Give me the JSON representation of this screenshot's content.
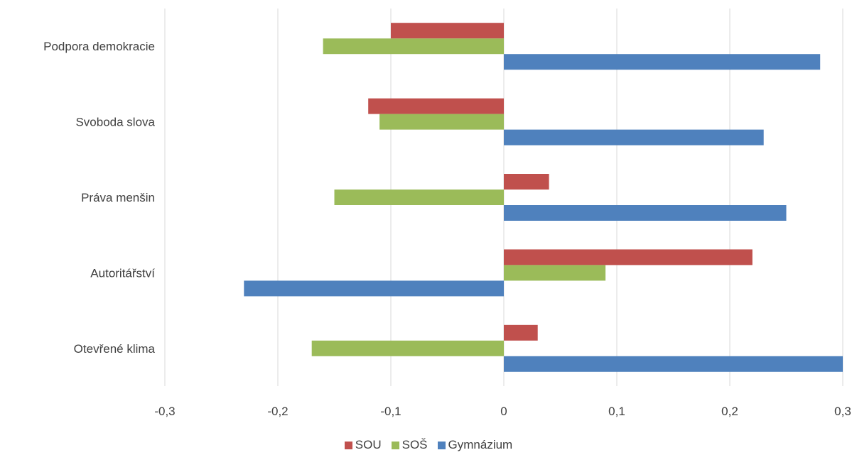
{
  "chart_data": {
    "type": "bar",
    "orientation": "horizontal",
    "categories": [
      "Podpora demokracie",
      "Svoboda slova",
      "Práva menšin",
      "Autoritářství",
      "Otevřené klima"
    ],
    "series": [
      {
        "name": "SOU",
        "color": "#C0504D",
        "values": [
          -0.1,
          -0.12,
          0.04,
          0.22,
          0.03
        ]
      },
      {
        "name": "SOŠ",
        "color": "#9BBB59",
        "values": [
          -0.16,
          -0.11,
          -0.15,
          0.09,
          -0.17
        ]
      },
      {
        "name": "Gymnázium",
        "color": "#4F81BD",
        "values": [
          0.28,
          0.23,
          0.25,
          -0.23,
          0.3
        ]
      }
    ],
    "xlim": [
      -0.3,
      0.3
    ],
    "xticks": [
      -0.3,
      -0.2,
      -0.1,
      0,
      0.1,
      0.2,
      0.3
    ],
    "xtick_labels": [
      "-0,3",
      "-0,2",
      "-0,1",
      "0",
      "0,1",
      "0,2",
      "0,3"
    ],
    "grid": true,
    "legend_position": "bottom"
  }
}
